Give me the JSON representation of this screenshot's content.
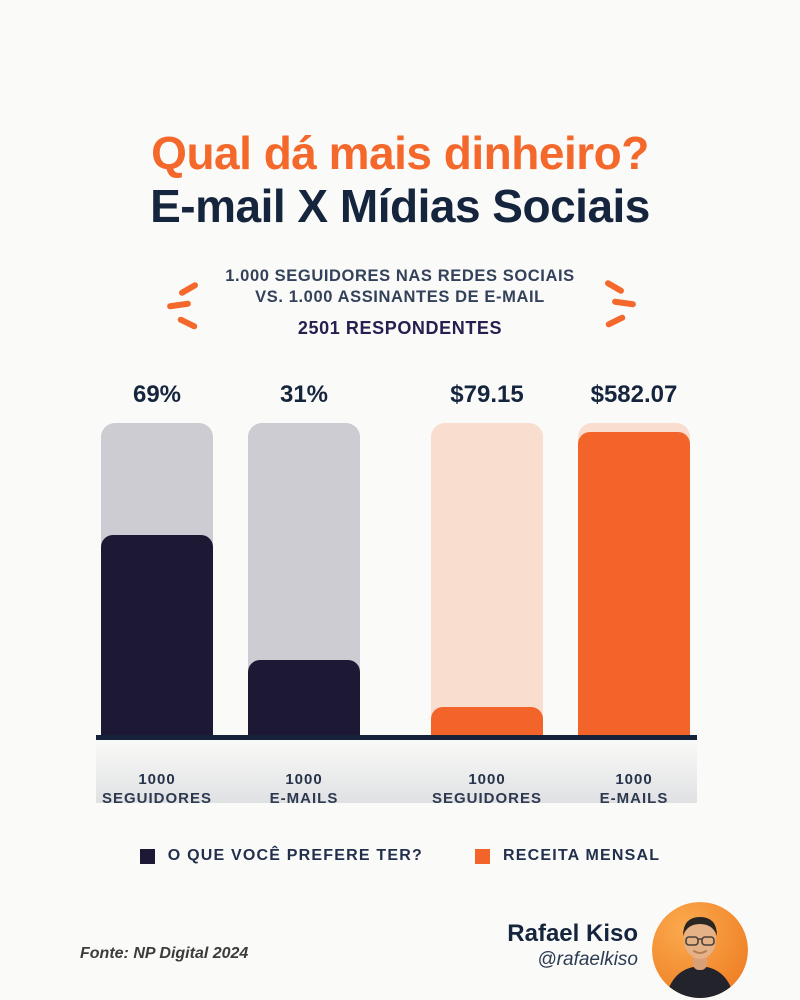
{
  "colors": {
    "background": "#fafaf8",
    "accent_orange": "#f4682c",
    "dark_navy": "#16253e",
    "navy_fill": "#1d1834",
    "orange_fill": "#f2642a",
    "gray_track": "#cdccd2",
    "peach_track": "#f9ddcf",
    "baseline": "#16213a"
  },
  "title": {
    "line1": "Qual dá mais dinheiro?",
    "line2": "E-mail X Mídias Sociais"
  },
  "subtitle": {
    "line1": "1.000 SEGUIDORES NAS REDES SOCIAIS",
    "line2": "VS. 1.000 ASSINANTES DE E-MAIL",
    "respondents": "2501 RESPONDENTES"
  },
  "chart_data": {
    "type": "bar",
    "title": "Qual dá mais dinheiro? E-mail X Mídias Sociais",
    "subtitle": "1.000 seguidores nas redes sociais vs. 1.000 assinantes de e-mail",
    "sample": "2501 respondentes",
    "categories": [
      "1000 SEGUIDORES",
      "1000 E-MAILS",
      "1000 SEGUIDORES",
      "1000 E-MAILS"
    ],
    "series": [
      {
        "name": "O QUE VOCÊ PREFERE TER?",
        "unit": "%",
        "color": "#1d1834",
        "values": [
          69,
          31,
          null,
          null
        ]
      },
      {
        "name": "RECEITA MENSAL",
        "unit": "USD",
        "color": "#f2642a",
        "values": [
          null,
          null,
          79.15,
          582.07
        ]
      }
    ],
    "legend_position": "bottom",
    "grid": false,
    "bars": [
      {
        "value_label": "69%",
        "value": 69,
        "fill_fraction": 0.64,
        "track_color": "#cdccd2",
        "fill_color": "#1d1834",
        "category_line1": "1000",
        "category_line2": "SEGUIDORES",
        "series": "O QUE VOCÊ PREFERE TER?"
      },
      {
        "value_label": "31%",
        "value": 31,
        "fill_fraction": 0.24,
        "track_color": "#cdccd2",
        "fill_color": "#1d1834",
        "category_line1": "1000",
        "category_line2": "E-MAILS",
        "series": "O QUE VOCÊ PREFERE TER?"
      },
      {
        "value_label": "$79.15",
        "value": 79.15,
        "fill_fraction": 0.09,
        "track_color": "#f9ddcf",
        "fill_color": "#f2642a",
        "category_line1": "1000",
        "category_line2": "SEGUIDORES",
        "series": "RECEITA MENSAL"
      },
      {
        "value_label": "$582.07",
        "value": 582.07,
        "fill_fraction": 0.97,
        "track_color": "#f9ddcf",
        "fill_color": "#f2642a",
        "category_line1": "1000",
        "category_line2": "E-MAILS",
        "series": "RECEITA MENSAL"
      }
    ]
  },
  "legend": {
    "items": [
      {
        "label": "O QUE VOCÊ PREFERE TER?",
        "color": "#1d1834"
      },
      {
        "label": "RECEITA MENSAL",
        "color": "#f2642a"
      }
    ]
  },
  "footer": {
    "source": "Fonte: NP Digital 2024",
    "author_name": "Rafael Kiso",
    "author_handle": "@rafaelkiso"
  }
}
